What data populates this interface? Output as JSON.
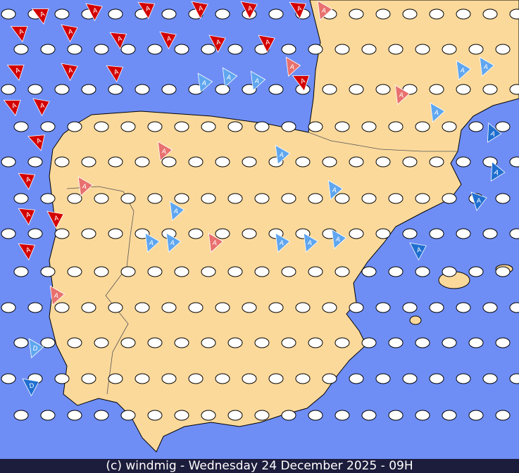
{
  "footer": "(c) windmig - Wednesday 24 December 2025 - 09H",
  "flags": [
    "A",
    "A",
    "A",
    "A",
    "A",
    "A",
    "A",
    "A",
    "A",
    "A",
    "A",
    "A",
    "A",
    "A",
    "A",
    "A",
    "A",
    "A",
    "A",
    "A",
    "A",
    "A",
    "A",
    "A",
    "A",
    "A",
    "A",
    "A",
    "A",
    "A",
    "A",
    "A",
    "A",
    "A",
    "A",
    "A",
    "A",
    "A",
    "A",
    "A",
    "A",
    "A",
    "A",
    "A",
    "D",
    "D",
    "A",
    "A",
    "A",
    "A"
  ]
}
